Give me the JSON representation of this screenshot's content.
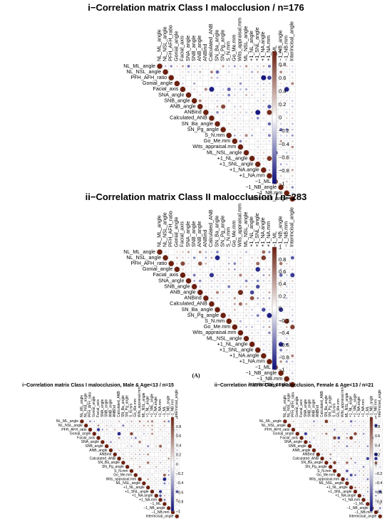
{
  "figure_label": "(A)",
  "chart_data": [
    {
      "type": "heatmap",
      "title": "i−Correlation matrix Class I malocclusion / n=176",
      "variables": [
        "NL_ML_angle",
        "NL_NSL_angle",
        "PFH_AFH_ratio",
        "Gonial_angle",
        "Facial_axis",
        "SNA_angle",
        "SNB_angle",
        "ANB_angle",
        "ANBind",
        "Calculated_ANB",
        "SN_Ba_angle",
        "SN_Pg_angle",
        "S_N.mm",
        "Go_Me.mm",
        "Wits_appraisal.mm",
        "ML_NSL_angle",
        "+1_NL_angle",
        "+1_SNL_angle",
        "+1_NA.angle",
        "+1_NA.mm",
        "−1_ML",
        "−1_NB_angle",
        "−1_NB.mm",
        "Interincisal_angle"
      ],
      "upper_triangle": true,
      "colorbar_ticks": [
        "1",
        "0.8",
        "0.6",
        "0.4",
        "0.2",
        "0",
        "−0.2",
        "−0.4",
        "−0.6",
        "−0.8",
        "−1"
      ],
      "color_scale": {
        "low": "#0a0a7a",
        "mid": "#ffffff",
        "high": "#6b1f0f"
      },
      "seed": 11
    },
    {
      "type": "heatmap",
      "title": "ii−Correlation matrix Class II malocclusion / n=283",
      "variables": [
        "NL_ML_angle",
        "NL_NSL_angle",
        "PFH_AFH_ratio",
        "Gonial_angle",
        "Facial_axis",
        "SNA_angle",
        "SNB_angle",
        "ANB_angle",
        "ANBind",
        "Calculated_ANB",
        "SN_Ba_angle",
        "SN_Pg_angle",
        "S_N.mm",
        "Go_Me.mm",
        "Wits_appraisal.mm",
        "ML_NSL_angle",
        "+1_NL_angle",
        "+1_SNL_angle",
        "+1_NA.angle",
        "+1_NA.mm",
        "−1_ML",
        "−1_NB_angle",
        "−1_NB.mm",
        "Interincisal_angle"
      ],
      "upper_triangle": true,
      "colorbar_ticks": [
        "1",
        "0.8",
        "0.6",
        "0.4",
        "0.2",
        "0",
        "−0.2",
        "−0.4",
        "−0.6",
        "−0.8",
        "−1"
      ],
      "color_scale": {
        "low": "#0a0a7a",
        "mid": "#ffffff",
        "high": "#6b1f0f"
      },
      "seed": 23
    },
    {
      "type": "heatmap",
      "title": "i−Correlation matrix Class I malocclusion, Male & Age<13 / n=15",
      "variables": [
        "NL_ML_angle",
        "NL_NSL_angle",
        "PFH_AFH_ratio",
        "Gonial_angle",
        "Facial_axis",
        "SNA_angle",
        "SNB_angle",
        "ANB_angle",
        "ANBind",
        "Calculated_ANB",
        "SN_Ba_angle",
        "SN_Pg_angle",
        "S_N.mm",
        "Go_Me.mm",
        "Wits_appraisal.mm",
        "ML_NSL_angle",
        "+1_NL_angle",
        "+1_SNL_angle",
        "+1_NA.angle",
        "+1_NA.mm",
        "−1_ML",
        "−1_NB_angle",
        "−1_NB.mm",
        "Interincisal_angle"
      ],
      "upper_triangle": true,
      "colorbar_ticks": [
        "1",
        "0.8",
        "0.6",
        "0.4",
        "0.2",
        "0",
        "−0.2",
        "−0.4",
        "−0.6",
        "−0.8",
        "−1"
      ],
      "color_scale": {
        "low": "#0a0a7a",
        "mid": "#ffffff",
        "high": "#6b1f0f"
      },
      "seed": 37
    },
    {
      "type": "heatmap",
      "title": "ii−Correlation matrix Class I malocclusion, Female & Age<13 / n=21",
      "variables": [
        "NL_ML_angle",
        "NL_NSL_angle",
        "PFH_AFH_ratio",
        "Gonial_angle",
        "Facial_axis",
        "SNA_angle",
        "SNB_angle",
        "ANB_angle",
        "ANBind",
        "Calculated_ANB",
        "SN_Ba_angle",
        "SN_Pg_angle",
        "S_N.mm",
        "Go_Me.mm",
        "Wits_appraisal.mm",
        "ML_NSL_angle",
        "+1_NL_angle",
        "+1_SNL_angle",
        "+1_NA.angle",
        "+1_NA.mm",
        "−1_ML",
        "−1_NB_angle",
        "−1_NB.mm",
        "Interincisal_angle"
      ],
      "upper_triangle": true,
      "colorbar_ticks": [
        "1",
        "0.8",
        "0.6",
        "0.4",
        "0.2",
        "0",
        "−0.2",
        "−0.4",
        "−0.6",
        "−0.8",
        "−1"
      ],
      "color_scale": {
        "low": "#0a0a7a",
        "mid": "#ffffff",
        "high": "#6b1f0f"
      },
      "seed": 59
    }
  ]
}
